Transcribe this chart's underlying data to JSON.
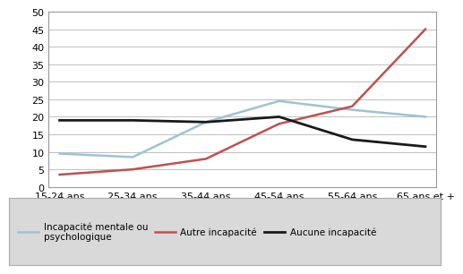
{
  "categories": [
    "15-24 ans",
    "25-34 ans",
    "35-44 ans",
    "45-54 ans",
    "55-64 ans",
    "65 ans et +"
  ],
  "series": [
    {
      "label": "Incapacité mentale ou\npsychologique",
      "values": [
        9.5,
        8.5,
        18.5,
        24.5,
        22.0,
        20.0
      ],
      "color": "#9DC3D4",
      "linewidth": 1.8
    },
    {
      "label": "Autre incapacité",
      "values": [
        3.5,
        5.0,
        8.0,
        18.0,
        23.0,
        45.0
      ],
      "color": "#C0504D",
      "linewidth": 1.8
    },
    {
      "label": "Aucune incapacité",
      "values": [
        19.0,
        19.0,
        18.5,
        20.0,
        13.5,
        11.5
      ],
      "color": "#1A1A1A",
      "linewidth": 2.0
    }
  ],
  "ylim": [
    0,
    50
  ],
  "yticks": [
    0,
    5,
    10,
    15,
    20,
    25,
    30,
    35,
    40,
    45,
    50
  ],
  "background_color": "#FFFFFF",
  "grid_color": "#BFBFBF",
  "legend_fontsize": 7.5,
  "tick_fontsize": 8.0,
  "legend_box_color": "#D9D9D9"
}
